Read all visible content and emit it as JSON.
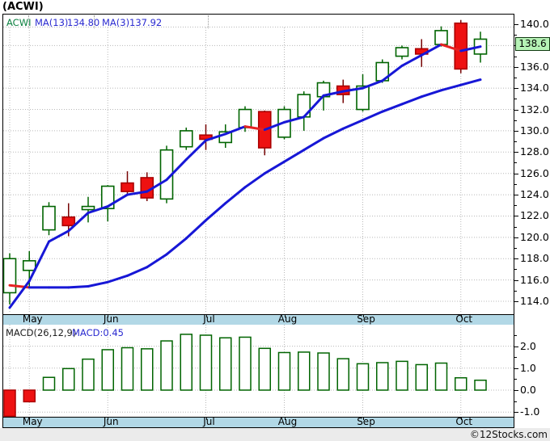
{
  "title": "(ACWI)",
  "watermark": "©12Stocks.com",
  "main_chart": {
    "legend": {
      "symbol": "ACWI",
      "ma13_label": "MA(13)",
      "ma13_value": "134.80",
      "ma3_label": "MA(3)",
      "ma3_value": "137.92"
    },
    "last_price_label": "138.6"
  },
  "macd_panel": {
    "label": "MACD(26,12,9)",
    "value_label": "MACD:0.45"
  },
  "months": [
    "May",
    "Jun",
    "Jul",
    "Aug",
    "Sep",
    "Oct"
  ],
  "colors": {
    "up": "#006400",
    "down_fill": "#ee1111",
    "down_stroke": "#aa0000",
    "down_wick": "#770505",
    "ma_blue": "#1717d6",
    "ma_red": "#e62222",
    "grid": "#b8b8b8",
    "axis_strip_bg": "#b2d8e6",
    "price_box_bg": "#b6f2b6",
    "legend_symbol": "#0c8040",
    "legend_ma": "#2a2ad0",
    "macd_label": "#202020",
    "macd_value": "#2a2ad0",
    "footer_bg": "#ebebeb"
  },
  "chart_data": [
    {
      "type": "candlestick",
      "symbol": "ACWI",
      "timeframe_months_shown": [
        "May",
        "Jun",
        "Jul",
        "Aug",
        "Sep",
        "Oct"
      ],
      "month_tick_indices": [
        1,
        5,
        10,
        14,
        18,
        23
      ],
      "y_axis_ticks": [
        140,
        138,
        136,
        134,
        132,
        130,
        128,
        126,
        124,
        122,
        120,
        118,
        116,
        114
      ],
      "y_range_shown": [
        113.1,
        140.9
      ],
      "last_price": 138.6,
      "candles": {
        "columns": [
          "open",
          "high",
          "low",
          "close"
        ],
        "rows": [
          [
            114.8,
            118.5,
            113.7,
            118.0
          ],
          [
            116.9,
            118.7,
            115.2,
            117.8
          ],
          [
            120.7,
            123.3,
            120.2,
            122.9
          ],
          [
            121.9,
            123.2,
            120.1,
            121.1
          ],
          [
            122.6,
            123.8,
            121.4,
            122.9
          ],
          [
            122.7,
            124.9,
            121.5,
            124.8
          ],
          [
            125.1,
            126.2,
            124.0,
            124.3
          ],
          [
            125.6,
            126.1,
            123.4,
            123.7
          ],
          [
            123.6,
            128.6,
            123.2,
            128.2
          ],
          [
            128.5,
            130.3,
            128.2,
            130.0
          ],
          [
            129.6,
            130.6,
            128.2,
            129.2
          ],
          [
            128.9,
            130.6,
            128.4,
            129.9
          ],
          [
            130.3,
            132.3,
            129.9,
            132.0
          ],
          [
            131.8,
            131.9,
            127.7,
            128.4
          ],
          [
            129.4,
            132.3,
            129.2,
            132.0
          ],
          [
            131.3,
            133.7,
            130.0,
            133.4
          ],
          [
            133.2,
            134.7,
            131.9,
            134.5
          ],
          [
            134.2,
            134.8,
            132.6,
            133.4
          ],
          [
            132.0,
            135.3,
            131.8,
            134.2
          ],
          [
            134.7,
            136.7,
            134.5,
            136.4
          ],
          [
            137.0,
            138.0,
            136.7,
            137.8
          ],
          [
            137.7,
            138.6,
            136.0,
            137.2
          ],
          [
            138.1,
            139.8,
            137.9,
            139.4
          ],
          [
            140.1,
            140.4,
            135.4,
            135.8
          ],
          [
            137.2,
            139.3,
            136.4,
            138.6
          ]
        ]
      },
      "overlays": [
        {
          "name": "MA(3)",
          "current": 137.92,
          "values": [
            113.4,
            115.9,
            119.6,
            120.6,
            122.3,
            122.9,
            124.0,
            124.3,
            125.4,
            127.3,
            129.1,
            129.7,
            130.4,
            130.1,
            130.8,
            131.3,
            133.3,
            133.7,
            134.0,
            134.7,
            136.1,
            137.1,
            138.1,
            137.5,
            137.9
          ]
        },
        {
          "name": "MA(13)",
          "current": 134.8,
          "values": [
            115.5,
            115.3,
            115.3,
            115.3,
            115.4,
            115.8,
            116.4,
            117.2,
            118.4,
            119.9,
            121.6,
            123.2,
            124.7,
            126.0,
            127.1,
            128.2,
            129.3,
            130.2,
            131.0,
            131.8,
            132.5,
            133.2,
            133.8,
            134.3,
            134.8
          ]
        }
      ]
    },
    {
      "type": "bar",
      "name": "MACD(26,12,9)",
      "current": 0.45,
      "y_axis_ticks": [
        2.0,
        1.0,
        0.0,
        -1.0
      ],
      "y_range_shown": [
        -1.2,
        2.95
      ],
      "values": [
        -1.19,
        -0.53,
        0.58,
        0.98,
        1.41,
        1.84,
        1.93,
        1.88,
        2.24,
        2.54,
        2.5,
        2.38,
        2.41,
        1.9,
        1.71,
        1.73,
        1.69,
        1.43,
        1.2,
        1.25,
        1.31,
        1.16,
        1.23,
        0.56,
        0.45
      ]
    }
  ]
}
